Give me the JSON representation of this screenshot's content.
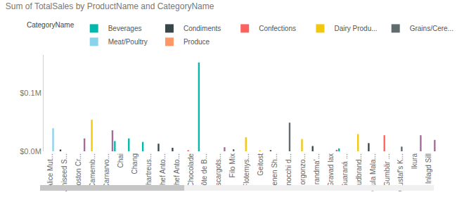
{
  "chart_data": {
    "type": "bar",
    "title": "Sum of TotalSales by ProductName and CategoryName",
    "legend_title": "CategoryName",
    "categories": [
      "Alice Mut...",
      "Aniseed S...",
      "Boston Cr...",
      "Camemb...",
      "Carnarvo...",
      "Chai",
      "Chang",
      "Chartreus...",
      "Chef Anto...",
      "Chef Anto...",
      "Chocolade",
      "Côte de B...",
      "Escargots...",
      "Filo Mix",
      "Flotemys...",
      "Geitost",
      "Genen Sh...",
      "Gnocchi d...",
      "Gorgonzo...",
      "Grandma'...",
      "Gravad lax",
      "Guaraná ...",
      "Gudbrand...",
      "Gula Mala...",
      "Gumbär ...",
      "Gustaf's K...",
      "Ikura",
      "Inlagd Sill"
    ],
    "series": [
      {
        "name": "Beverages",
        "color": "#01B8AA",
        "values": [
          null,
          null,
          null,
          null,
          null,
          17500,
          22000,
          16000,
          null,
          null,
          null,
          152000,
          null,
          null,
          null,
          null,
          null,
          null,
          null,
          null,
          null,
          5000,
          null,
          null,
          null,
          null,
          null,
          null
        ]
      },
      {
        "name": "Condiments",
        "color": "#374649",
        "values": [
          null,
          3000,
          null,
          null,
          null,
          null,
          null,
          null,
          13000,
          6000,
          null,
          null,
          null,
          null,
          null,
          null,
          2000,
          null,
          null,
          9000,
          null,
          null,
          null,
          14000,
          null,
          null,
          null,
          null
        ]
      },
      {
        "name": "Confections",
        "color": "#FD625E",
        "values": [
          null,
          null,
          null,
          null,
          null,
          null,
          null,
          null,
          null,
          null,
          2000,
          null,
          null,
          null,
          null,
          null,
          null,
          null,
          null,
          null,
          null,
          null,
          null,
          null,
          27500,
          null,
          null,
          null
        ]
      },
      {
        "name": "Dairy Produ...",
        "color": "#F2C80F",
        "values": [
          null,
          null,
          null,
          54000,
          null,
          null,
          null,
          null,
          null,
          null,
          null,
          null,
          null,
          null,
          24000,
          1600,
          null,
          null,
          21000,
          null,
          null,
          null,
          29500,
          null,
          null,
          null,
          null,
          null
        ]
      },
      {
        "name": "Grains/Cere...",
        "color": "#5F6B6D",
        "values": [
          null,
          null,
          null,
          null,
          null,
          null,
          null,
          null,
          null,
          null,
          null,
          null,
          null,
          3500,
          null,
          null,
          null,
          49000,
          null,
          null,
          null,
          null,
          null,
          null,
          null,
          8000,
          null,
          null
        ]
      },
      {
        "name": "Meat/Poultry",
        "color": "#8AD4EB",
        "values": [
          39500,
          null,
          null,
          null,
          null,
          null,
          null,
          null,
          null,
          null,
          null,
          null,
          null,
          null,
          null,
          null,
          null,
          null,
          null,
          null,
          null,
          null,
          null,
          null,
          null,
          null,
          null,
          null
        ]
      },
      {
        "name": "Produce",
        "color": "#FE9666",
        "values": [
          null,
          null,
          null,
          null,
          null,
          null,
          null,
          null,
          null,
          null,
          null,
          null,
          null,
          null,
          null,
          null,
          null,
          null,
          null,
          null,
          null,
          null,
          null,
          null,
          null,
          null,
          null,
          null
        ]
      },
      {
        "name": null,
        "color": "#A66999",
        "values": [
          null,
          null,
          22000,
          null,
          36000,
          null,
          null,
          null,
          null,
          null,
          null,
          null,
          7000,
          null,
          null,
          null,
          null,
          null,
          null,
          null,
          2500,
          null,
          null,
          null,
          null,
          null,
          27500,
          19500
        ]
      }
    ],
    "ylim": [
      0,
      165000
    ],
    "yticks": [
      {
        "value": 0,
        "label": "$0.0M"
      },
      {
        "value": 100000,
        "label": "$0.1M"
      }
    ],
    "grid": false,
    "legend": "top"
  }
}
